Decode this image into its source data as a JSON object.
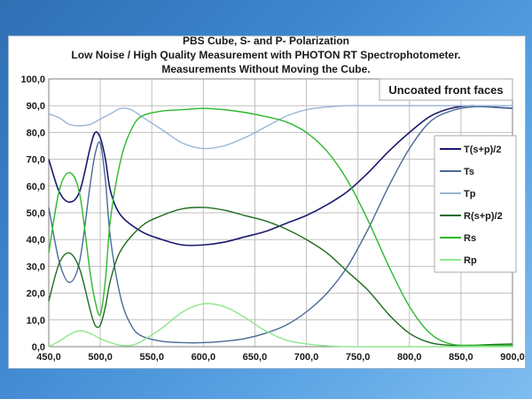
{
  "colors": {
    "background_gradient_start": "#2f6fb3",
    "background_gradient_end": "#7fbdf0",
    "plot_border": "#7f7f7f",
    "grid": "#bfbfbf"
  },
  "chart_data": {
    "type": "line",
    "title_lines": [
      "PBS Cube, S- and P- Polarization",
      "Low Noise / High Quality Measurement with PHOTON RT Spectrophotometer.",
      "Measurements Without Moving the Cube."
    ],
    "annotation": "Uncoated front faces",
    "xlabel": "",
    "ylabel": "",
    "xlim": [
      450,
      900
    ],
    "ylim": [
      0,
      100
    ],
    "x_ticks": [
      "450,0",
      "500,0",
      "550,0",
      "600,0",
      "650,0",
      "700,0",
      "750,0",
      "800,0",
      "850,0",
      "900,0"
    ],
    "y_ticks": [
      "0,0",
      "10,0",
      "20,0",
      "30,0",
      "40,0",
      "50,0",
      "60,0",
      "70,0",
      "80,0",
      "90,0",
      "100,0"
    ],
    "grid": true,
    "legend_position": "right",
    "series": [
      {
        "name": "T(s+p)/2",
        "color": "#1a1a6e",
        "width": 1.6,
        "x": [
          450,
          460,
          470,
          480,
          490,
          495,
          500,
          505,
          510,
          520,
          540,
          560,
          580,
          600,
          620,
          640,
          660,
          680,
          700,
          720,
          740,
          760,
          780,
          800,
          820,
          840,
          860,
          880,
          900
        ],
        "y": [
          70,
          58,
          54,
          58,
          74,
          80,
          78,
          70,
          58,
          49,
          43,
          40,
          38,
          38,
          39,
          41,
          43,
          46,
          49,
          53,
          58,
          65,
          73,
          80,
          86,
          89,
          90,
          89.5,
          89
        ]
      },
      {
        "name": "Ts",
        "color": "#4a6a96",
        "width": 1.4,
        "x": [
          450,
          460,
          470,
          480,
          490,
          495,
          500,
          505,
          510,
          520,
          530,
          540,
          560,
          580,
          600,
          620,
          640,
          660,
          680,
          700,
          720,
          740,
          760,
          780,
          800,
          820,
          840,
          860,
          880,
          900
        ],
        "y": [
          52,
          32,
          24,
          32,
          60,
          72,
          76,
          62,
          40,
          18,
          8,
          4,
          2,
          1.5,
          1.5,
          2,
          3,
          5,
          8,
          13,
          20,
          30,
          44,
          60,
          74,
          84,
          88,
          89.5,
          89.5,
          89
        ]
      },
      {
        "name": "Tp",
        "color": "#9ab5d6",
        "width": 1.4,
        "x": [
          450,
          460,
          470,
          480,
          490,
          500,
          510,
          520,
          530,
          540,
          560,
          580,
          600,
          620,
          640,
          660,
          680,
          700,
          720,
          740,
          760,
          780,
          800,
          820,
          840,
          860,
          880,
          900
        ],
        "y": [
          87,
          85.5,
          83,
          82.5,
          83,
          85,
          87,
          89,
          88.5,
          86,
          81,
          76,
          74,
          75,
          78,
          82,
          86,
          88.5,
          89.5,
          90,
          90,
          90,
          90,
          90,
          90,
          90,
          90,
          90
        ]
      },
      {
        "name": "R(s+p)/2",
        "color": "#1e6b1e",
        "width": 1.4,
        "x": [
          450,
          460,
          470,
          480,
          490,
          495,
          500,
          505,
          510,
          520,
          540,
          560,
          580,
          600,
          620,
          640,
          660,
          680,
          700,
          720,
          740,
          760,
          780,
          800,
          820,
          840,
          860,
          880,
          900
        ],
        "y": [
          17,
          31,
          35,
          29,
          14,
          8,
          8,
          15,
          25,
          36,
          45,
          49,
          51.5,
          52,
          51,
          49,
          47,
          44,
          40,
          35,
          28,
          21,
          12,
          5,
          1.5,
          0.5,
          0.5,
          0.8,
          1
        ]
      },
      {
        "name": "Rs",
        "color": "#2db82d",
        "width": 1.4,
        "x": [
          450,
          460,
          470,
          480,
          490,
          495,
          500,
          505,
          510,
          520,
          530,
          540,
          560,
          580,
          600,
          620,
          640,
          660,
          680,
          700,
          720,
          740,
          760,
          780,
          800,
          820,
          840,
          860,
          880,
          900
        ],
        "y": [
          35,
          58,
          65,
          57,
          28,
          17,
          12,
          25,
          48,
          70,
          81,
          86,
          88,
          88.5,
          89,
          88.5,
          87.5,
          86,
          84,
          80,
          73,
          62,
          47,
          30,
          15,
          5,
          1,
          0.5,
          0.5,
          0.5
        ]
      },
      {
        "name": "Rp",
        "color": "#8ee68e",
        "width": 1.4,
        "x": [
          450,
          460,
          470,
          480,
          490,
          500,
          510,
          520,
          530,
          540,
          560,
          580,
          600,
          620,
          640,
          660,
          680,
          700,
          720,
          740,
          760,
          780,
          800,
          820,
          840,
          860,
          880,
          900
        ],
        "y": [
          0,
          2,
          4.5,
          6,
          5,
          3,
          1.5,
          0.5,
          0.5,
          2,
          7,
          13,
          16,
          15,
          11,
          6,
          2.5,
          1,
          0.3,
          0,
          0,
          0,
          0,
          0,
          0,
          0,
          0,
          0
        ]
      }
    ]
  }
}
